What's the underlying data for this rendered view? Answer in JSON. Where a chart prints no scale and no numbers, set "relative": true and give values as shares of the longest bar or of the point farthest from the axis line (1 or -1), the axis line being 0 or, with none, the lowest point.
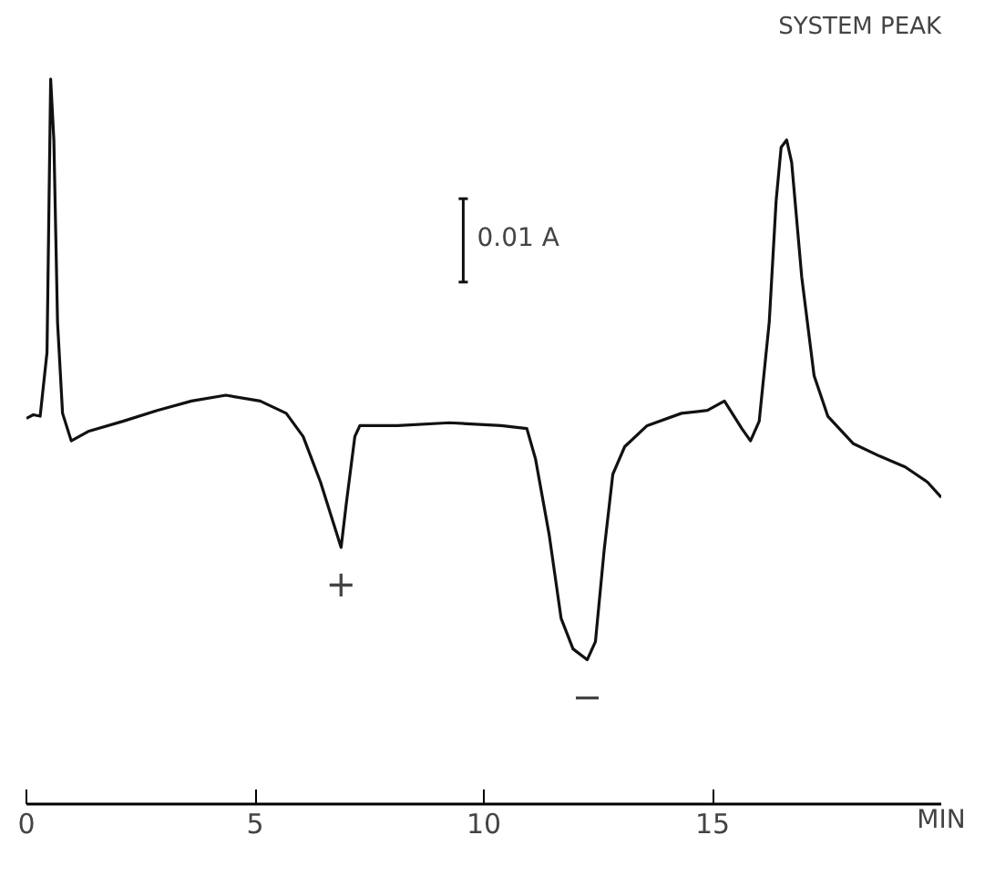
{
  "chart_data": {
    "type": "line",
    "relative": true,
    "xlabel": "MIN",
    "xlim": [
      0,
      20
    ],
    "xticks": [
      0,
      5,
      10,
      15
    ],
    "color": "#111111",
    "grid": false,
    "marker": "none",
    "line_style": "solid",
    "tick_labels": "x",
    "x": [
      0,
      0.15,
      0.3,
      0.45,
      0.53,
      0.6,
      0.68,
      0.79,
      0.98,
      1.35,
      2.11,
      2.86,
      3.61,
      4.36,
      5.11,
      5.68,
      6.05,
      6.43,
      6.69,
      6.88,
      6.99,
      7.18,
      7.29,
      8.12,
      9.25,
      10.38,
      10.94,
      11.13,
      11.43,
      11.69,
      11.95,
      12.26,
      12.44,
      12.63,
      12.82,
      13.08,
      13.57,
      14.32,
      14.89,
      15.26,
      15.64,
      15.83,
      16.02,
      16.24,
      16.39,
      16.5,
      16.62,
      16.73,
      16.95,
      17.22,
      17.52,
      18.08,
      18.65,
      19.21,
      19.7,
      20.0
    ],
    "values": [
      0.532,
      0.537,
      0.535,
      0.623,
      1.0,
      0.916,
      0.665,
      0.539,
      0.501,
      0.514,
      0.528,
      0.543,
      0.556,
      0.564,
      0.556,
      0.539,
      0.507,
      0.444,
      0.392,
      0.354,
      0.413,
      0.507,
      0.522,
      0.522,
      0.526,
      0.522,
      0.518,
      0.476,
      0.371,
      0.256,
      0.214,
      0.199,
      0.224,
      0.35,
      0.455,
      0.493,
      0.522,
      0.539,
      0.543,
      0.556,
      0.518,
      0.501,
      0.528,
      0.665,
      0.832,
      0.906,
      0.916,
      0.885,
      0.727,
      0.591,
      0.535,
      0.497,
      0.48,
      0.465,
      0.444,
      0.423
    ],
    "annotations": [
      "SYSTEM PEAK",
      {
        "text": "+",
        "x": 6.88,
        "y": 0.354
      },
      {
        "text": "−",
        "x": 12.26,
        "y": 0.199
      },
      "0.01 A"
    ]
  }
}
